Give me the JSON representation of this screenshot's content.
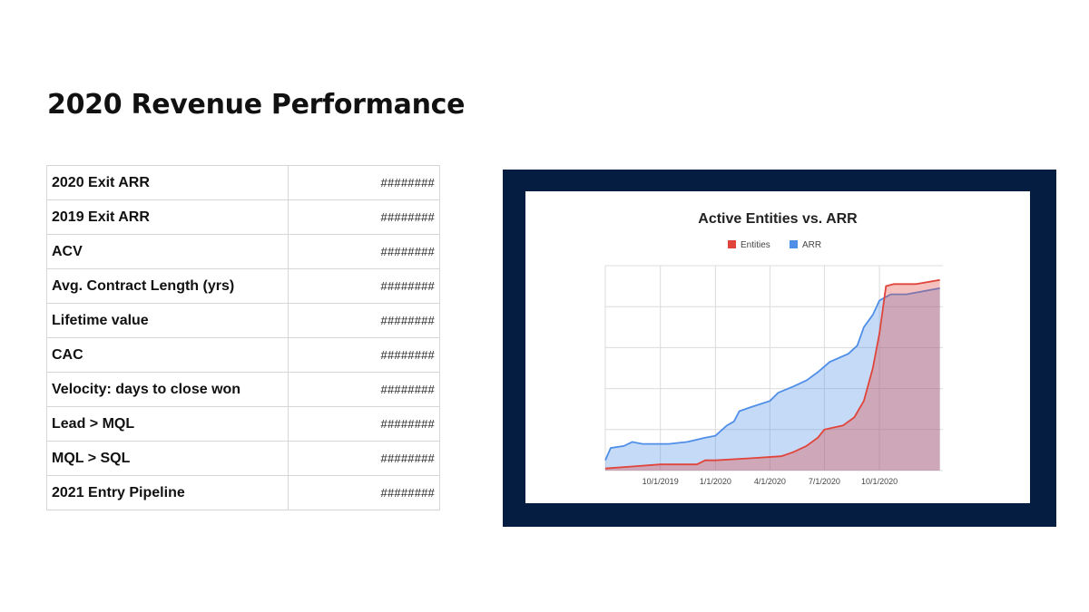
{
  "page": {
    "title": "2020 Revenue Performance"
  },
  "metrics": [
    {
      "label": "2020 Exit ARR",
      "value": "########"
    },
    {
      "label": "2019 Exit ARR",
      "value": "########"
    },
    {
      "label": "ACV",
      "value": "########"
    },
    {
      "label": "Avg. Contract Length (yrs)",
      "value": "########"
    },
    {
      "label": "Lifetime value",
      "value": "########"
    },
    {
      "label": "CAC",
      "value": "########"
    },
    {
      "label": "Velocity: days to close won",
      "value": "########"
    },
    {
      "label": "Lead > MQL",
      "value": "########"
    },
    {
      "label": "MQL > SQL",
      "value": "########"
    },
    {
      "label": "2021 Entry Pipeline",
      "value": "########"
    }
  ],
  "colors": {
    "frame": "#041d40",
    "entities": "#e0443a",
    "arr": "#4f8fe8"
  },
  "chart_data": {
    "type": "area",
    "title": "Active Entities vs. ARR",
    "xlabel": "",
    "ylabel": "",
    "legend_position": "top",
    "grid": true,
    "y_tick_labels_shown": false,
    "xlim": [
      "2019-07-01",
      "2021-01-15"
    ],
    "ylim": [
      0,
      100
    ],
    "x_ticks": [
      "10/1/2019",
      "1/1/2020",
      "4/1/2020",
      "7/1/2020",
      "10/1/2020"
    ],
    "series": [
      {
        "name": "Entities",
        "color": "#e0443a",
        "points": [
          [
            "2019-07-01",
            1
          ],
          [
            "2019-08-15",
            2
          ],
          [
            "2019-10-01",
            3
          ],
          [
            "2019-12-01",
            3
          ],
          [
            "2019-12-15",
            5
          ],
          [
            "2020-01-01",
            5
          ],
          [
            "2020-03-01",
            6
          ],
          [
            "2020-04-20",
            7
          ],
          [
            "2020-05-10",
            9
          ],
          [
            "2020-06-01",
            12
          ],
          [
            "2020-06-20",
            16
          ],
          [
            "2020-07-01",
            20
          ],
          [
            "2020-08-01",
            22
          ],
          [
            "2020-08-20",
            26
          ],
          [
            "2020-09-05",
            34
          ],
          [
            "2020-09-20",
            50
          ],
          [
            "2020-10-01",
            67
          ],
          [
            "2020-10-12",
            90
          ],
          [
            "2020-10-25",
            91
          ],
          [
            "2020-12-01",
            91
          ],
          [
            "2021-01-10",
            93
          ]
        ]
      },
      {
        "name": "ARR",
        "color": "#4f8fe8",
        "points": [
          [
            "2019-07-01",
            5
          ],
          [
            "2019-07-10",
            11
          ],
          [
            "2019-08-01",
            12
          ],
          [
            "2019-08-15",
            14
          ],
          [
            "2019-09-01",
            13
          ],
          [
            "2019-10-15",
            13
          ],
          [
            "2019-11-15",
            14
          ],
          [
            "2019-12-15",
            16
          ],
          [
            "2020-01-01",
            17
          ],
          [
            "2020-01-20",
            22
          ],
          [
            "2020-02-01",
            24
          ],
          [
            "2020-02-10",
            29
          ],
          [
            "2020-03-01",
            31
          ],
          [
            "2020-04-01",
            34
          ],
          [
            "2020-04-15",
            38
          ],
          [
            "2020-05-10",
            41
          ],
          [
            "2020-06-01",
            44
          ],
          [
            "2020-06-20",
            48
          ],
          [
            "2020-07-10",
            53
          ],
          [
            "2020-08-10",
            57
          ],
          [
            "2020-08-25",
            61
          ],
          [
            "2020-09-05",
            70
          ],
          [
            "2020-09-20",
            76
          ],
          [
            "2020-10-01",
            83
          ],
          [
            "2020-10-20",
            86
          ],
          [
            "2020-11-15",
            86
          ],
          [
            "2021-01-10",
            89
          ]
        ]
      }
    ]
  }
}
